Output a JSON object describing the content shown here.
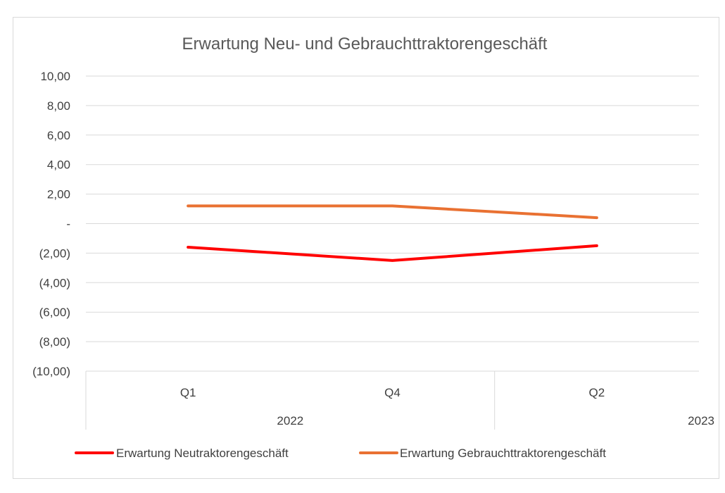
{
  "chart_data": {
    "type": "line",
    "title": "Erwartung Neu- und Gebrauchttraktorengeschäft",
    "categories": [
      "Q1",
      "Q4",
      "Q2"
    ],
    "category_groups": [
      {
        "label": "2022",
        "span": [
          0,
          1
        ]
      },
      {
        "label": "2023",
        "span": [
          2,
          2
        ]
      }
    ],
    "y_ticks": [
      10,
      8,
      6,
      4,
      2,
      0,
      -2,
      -4,
      -6,
      -8,
      -10
    ],
    "y_tick_labels": [
      "10,00",
      "8,00",
      "6,00",
      "4,00",
      "2,00",
      "-",
      "(2,00)",
      "(4,00)",
      "(6,00)",
      "(8,00)",
      "(10,00)"
    ],
    "ylim": [
      -10,
      10
    ],
    "grid": true,
    "legend_position": "bottom",
    "series": [
      {
        "name": "Erwartung Neutraktorengeschäft",
        "values": [
          -1.6,
          -2.5,
          -1.5
        ],
        "color": "#ff0000"
      },
      {
        "name": "Erwartung Gebrauchttraktorengeschäft",
        "values": [
          1.2,
          1.2,
          0.4
        ],
        "color": "#e97132"
      }
    ]
  }
}
